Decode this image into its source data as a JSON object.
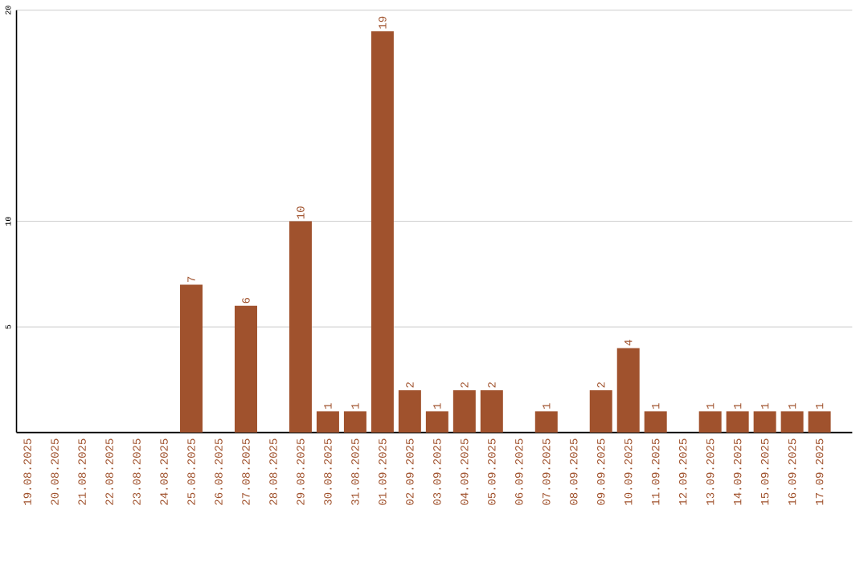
{
  "chart_data": {
    "type": "bar",
    "categories": [
      "19.08.2025",
      "20.08.2025",
      "21.08.2025",
      "22.08.2025",
      "23.08.2025",
      "24.08.2025",
      "25.08.2025",
      "26.08.2025",
      "27.08.2025",
      "28.08.2025",
      "29.08.2025",
      "30.08.2025",
      "31.08.2025",
      "01.09.2025",
      "02.09.2025",
      "03.09.2025",
      "04.09.2025",
      "05.09.2025",
      "06.09.2025",
      "07.09.2025",
      "08.09.2025",
      "09.09.2025",
      "10.09.2025",
      "11.09.2025",
      "12.09.2025",
      "13.09.2025",
      "14.09.2025",
      "15.09.2025",
      "16.09.2025",
      "17.09.2025"
    ],
    "values": [
      0,
      0,
      0,
      0,
      0,
      0,
      7,
      0,
      6,
      0,
      10,
      1,
      1,
      19,
      2,
      1,
      2,
      2,
      0,
      1,
      0,
      2,
      4,
      1,
      0,
      1,
      1,
      1,
      1,
      1
    ],
    "value_labels": [
      null,
      null,
      null,
      null,
      null,
      null,
      "7",
      null,
      "6",
      null,
      "10",
      "1",
      "1",
      "19",
      "2",
      "1",
      "2",
      "2",
      null,
      "1",
      null,
      "2",
      "4",
      "1",
      null,
      "1",
      "1",
      "1",
      "1",
      "1"
    ],
    "color": "#a0522d",
    "ylim": [
      0,
      20
    ],
    "yticks": [
      5,
      10,
      20
    ],
    "grid": "y"
  }
}
